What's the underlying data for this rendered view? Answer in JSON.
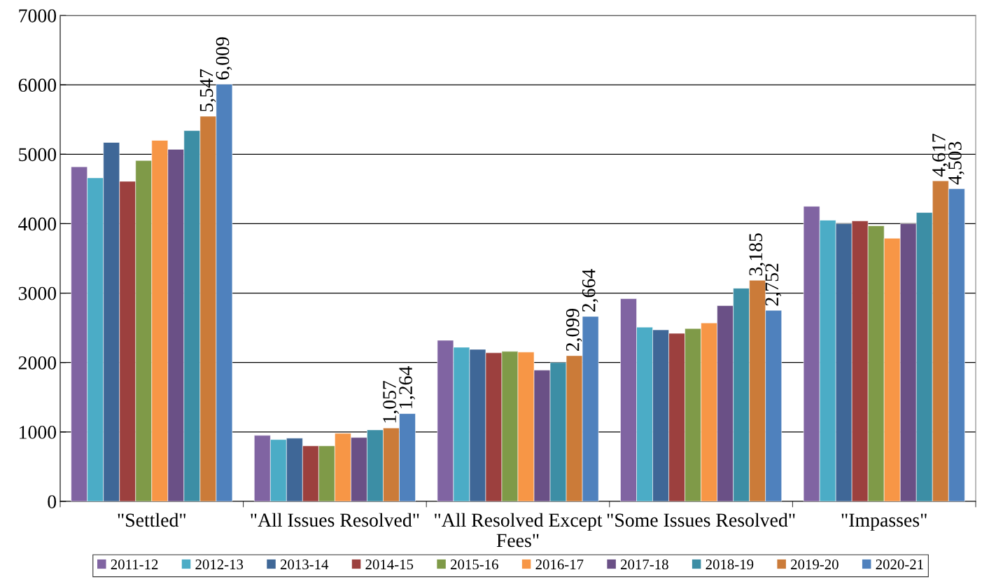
{
  "chart_data": {
    "type": "bar",
    "categories": [
      "\"Settled\"",
      "\"All Issues Resolved\"",
      "\"All Resolved Except\nFees\"",
      "\"Some Issues Resolved\"",
      "\"Impasses\""
    ],
    "series": [
      {
        "name": "2011-12",
        "color": "#8064a2",
        "values": [
          4820,
          950,
          2320,
          2920,
          4250
        ]
      },
      {
        "name": "2012-13",
        "color": "#4bacc6",
        "values": [
          4660,
          890,
          2220,
          2510,
          4050
        ]
      },
      {
        "name": "2013-14",
        "color": "#3f6797",
        "values": [
          5170,
          910,
          2190,
          2470,
          4000
        ]
      },
      {
        "name": "2014-15",
        "color": "#9c403e",
        "values": [
          4610,
          800,
          2140,
          2420,
          4040
        ]
      },
      {
        "name": "2015-16",
        "color": "#7f9a48",
        "values": [
          4910,
          800,
          2160,
          2490,
          3970
        ]
      },
      {
        "name": "2016-17",
        "color": "#f79646",
        "values": [
          5200,
          980,
          2150,
          2570,
          3790
        ]
      },
      {
        "name": "2017-18",
        "color": "#6a5086",
        "values": [
          5070,
          920,
          1890,
          2820,
          4000
        ]
      },
      {
        "name": "2018-19",
        "color": "#3c8ea5",
        "values": [
          5340,
          1030,
          2000,
          3070,
          4160
        ]
      },
      {
        "name": "2019-20",
        "color": "#cb7b39",
        "values": [
          5547,
          1057,
          2099,
          3185,
          4617
        ],
        "value_labels": [
          "5,547",
          "1,057",
          "2,099",
          "3,185",
          "4,617"
        ]
      },
      {
        "name": "2020-21",
        "color": "#4f81bd",
        "values": [
          6009,
          1264,
          2664,
          2752,
          4503
        ],
        "value_labels": [
          "6,009",
          "1,264",
          "2,664",
          "2,752",
          "4,503"
        ]
      }
    ],
    "ylim": [
      0,
      7000
    ],
    "yticks": [
      0,
      1000,
      2000,
      3000,
      4000,
      5000,
      6000,
      7000
    ],
    "grid": "y",
    "legend": "bottom"
  }
}
